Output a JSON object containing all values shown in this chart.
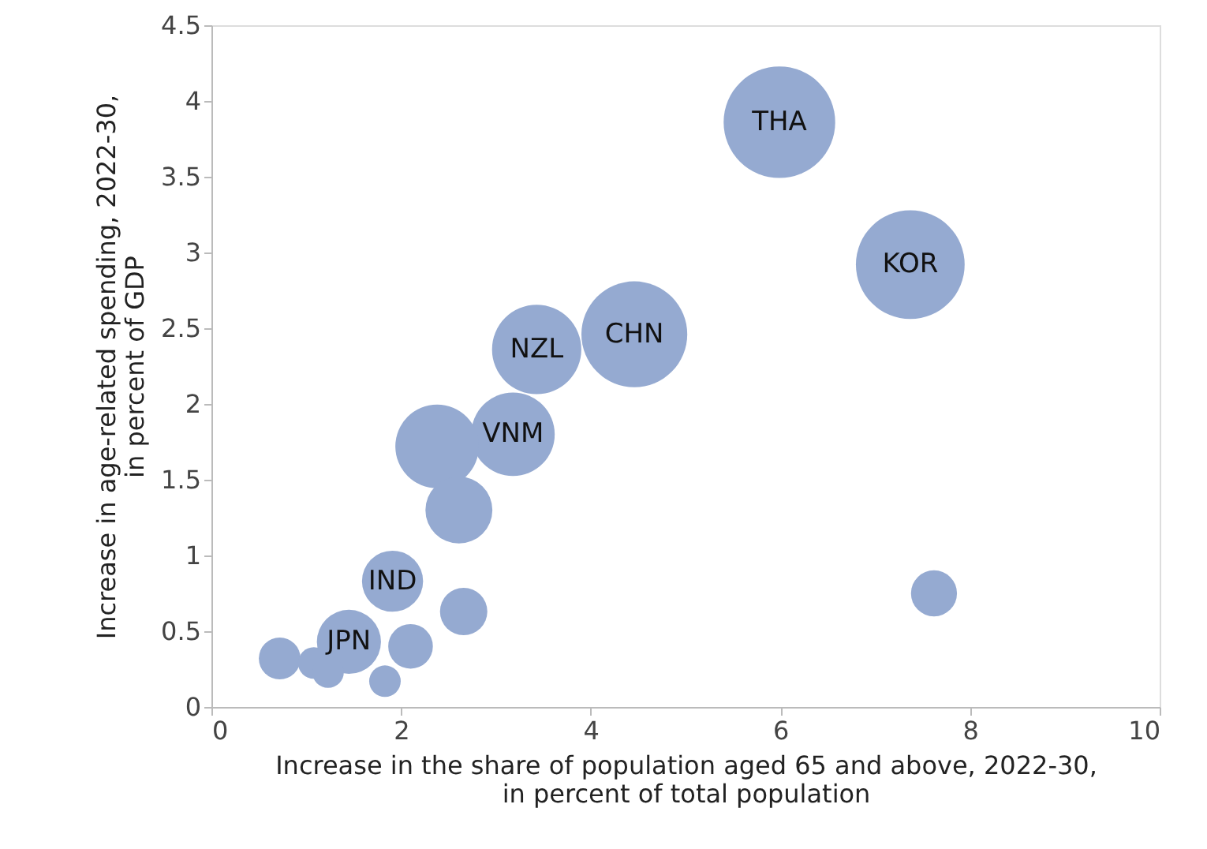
{
  "chart_data": {
    "type": "bubble",
    "xlabel": "Increase in the share of population aged 65 and above, 2022-30,\nin percent of total population",
    "ylabel": "Increase in age-related spending, 2022-30,\nin percent of GDP",
    "x": [
      5.99,
      7.37,
      4.46,
      3.43,
      3.18,
      2.38,
      2.61,
      1.91,
      2.66,
      1.45,
      2.1,
      0.72,
      1.08,
      1.23,
      1.83,
      7.62
    ],
    "values": [
      3.86,
      2.92,
      2.46,
      2.36,
      1.8,
      1.72,
      1.3,
      0.83,
      0.63,
      0.43,
      0.4,
      0.32,
      0.29,
      0.23,
      0.17,
      0.75
    ],
    "sizes": [
      1,
      0.95,
      0.9,
      0.64,
      0.56,
      0.56,
      0.36,
      0.3,
      0.18,
      0.33,
      0.16,
      0.14,
      0.08,
      0.08,
      0.08,
      0.17
    ],
    "color": "#95aad1",
    "annotations": [
      {
        "text": "THA",
        "x": 5.99,
        "y": 3.86
      },
      {
        "text": "KOR",
        "x": 7.37,
        "y": 2.92
      },
      {
        "text": "CHN",
        "x": 4.46,
        "y": 2.46
      },
      {
        "text": "NZL",
        "x": 3.43,
        "y": 2.36
      },
      {
        "text": "VNM",
        "x": 3.18,
        "y": 1.8
      },
      {
        "text": "IND",
        "x": 1.91,
        "y": 0.83
      },
      {
        "text": "JPN",
        "x": 1.45,
        "y": 0.43
      }
    ],
    "xlim": [
      0,
      10
    ],
    "xticks": [
      0,
      2,
      4,
      6,
      8,
      10
    ],
    "ylim": [
      0,
      4.5
    ],
    "yticks": [
      0,
      0.5,
      1,
      1.5,
      2,
      2.5,
      3,
      3.5,
      4,
      4.5
    ],
    "grid": false
  }
}
